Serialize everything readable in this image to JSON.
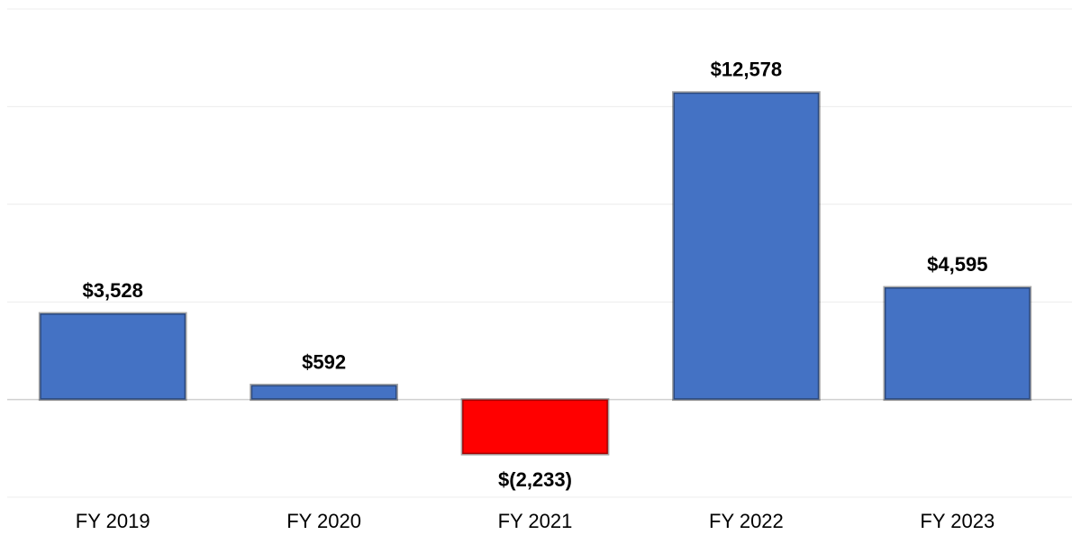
{
  "chart_data": {
    "type": "bar",
    "categories": [
      "FY 2019",
      "FY 2020",
      "FY 2021",
      "FY 2022",
      "FY 2023"
    ],
    "values": [
      3528,
      592,
      -2233,
      12578,
      4595
    ],
    "value_labels": [
      "$3,528",
      "$592",
      "$(2,233)",
      "$12,578",
      "$4,595"
    ],
    "colors": [
      "#4472c4",
      "#4472c4",
      "#ff0000",
      "#4472c4",
      "#4472c4"
    ],
    "ylim": [
      -4000,
      16000
    ],
    "yticks": [
      -4000,
      0,
      4000,
      8000,
      12000,
      16000
    ],
    "grid": true
  }
}
